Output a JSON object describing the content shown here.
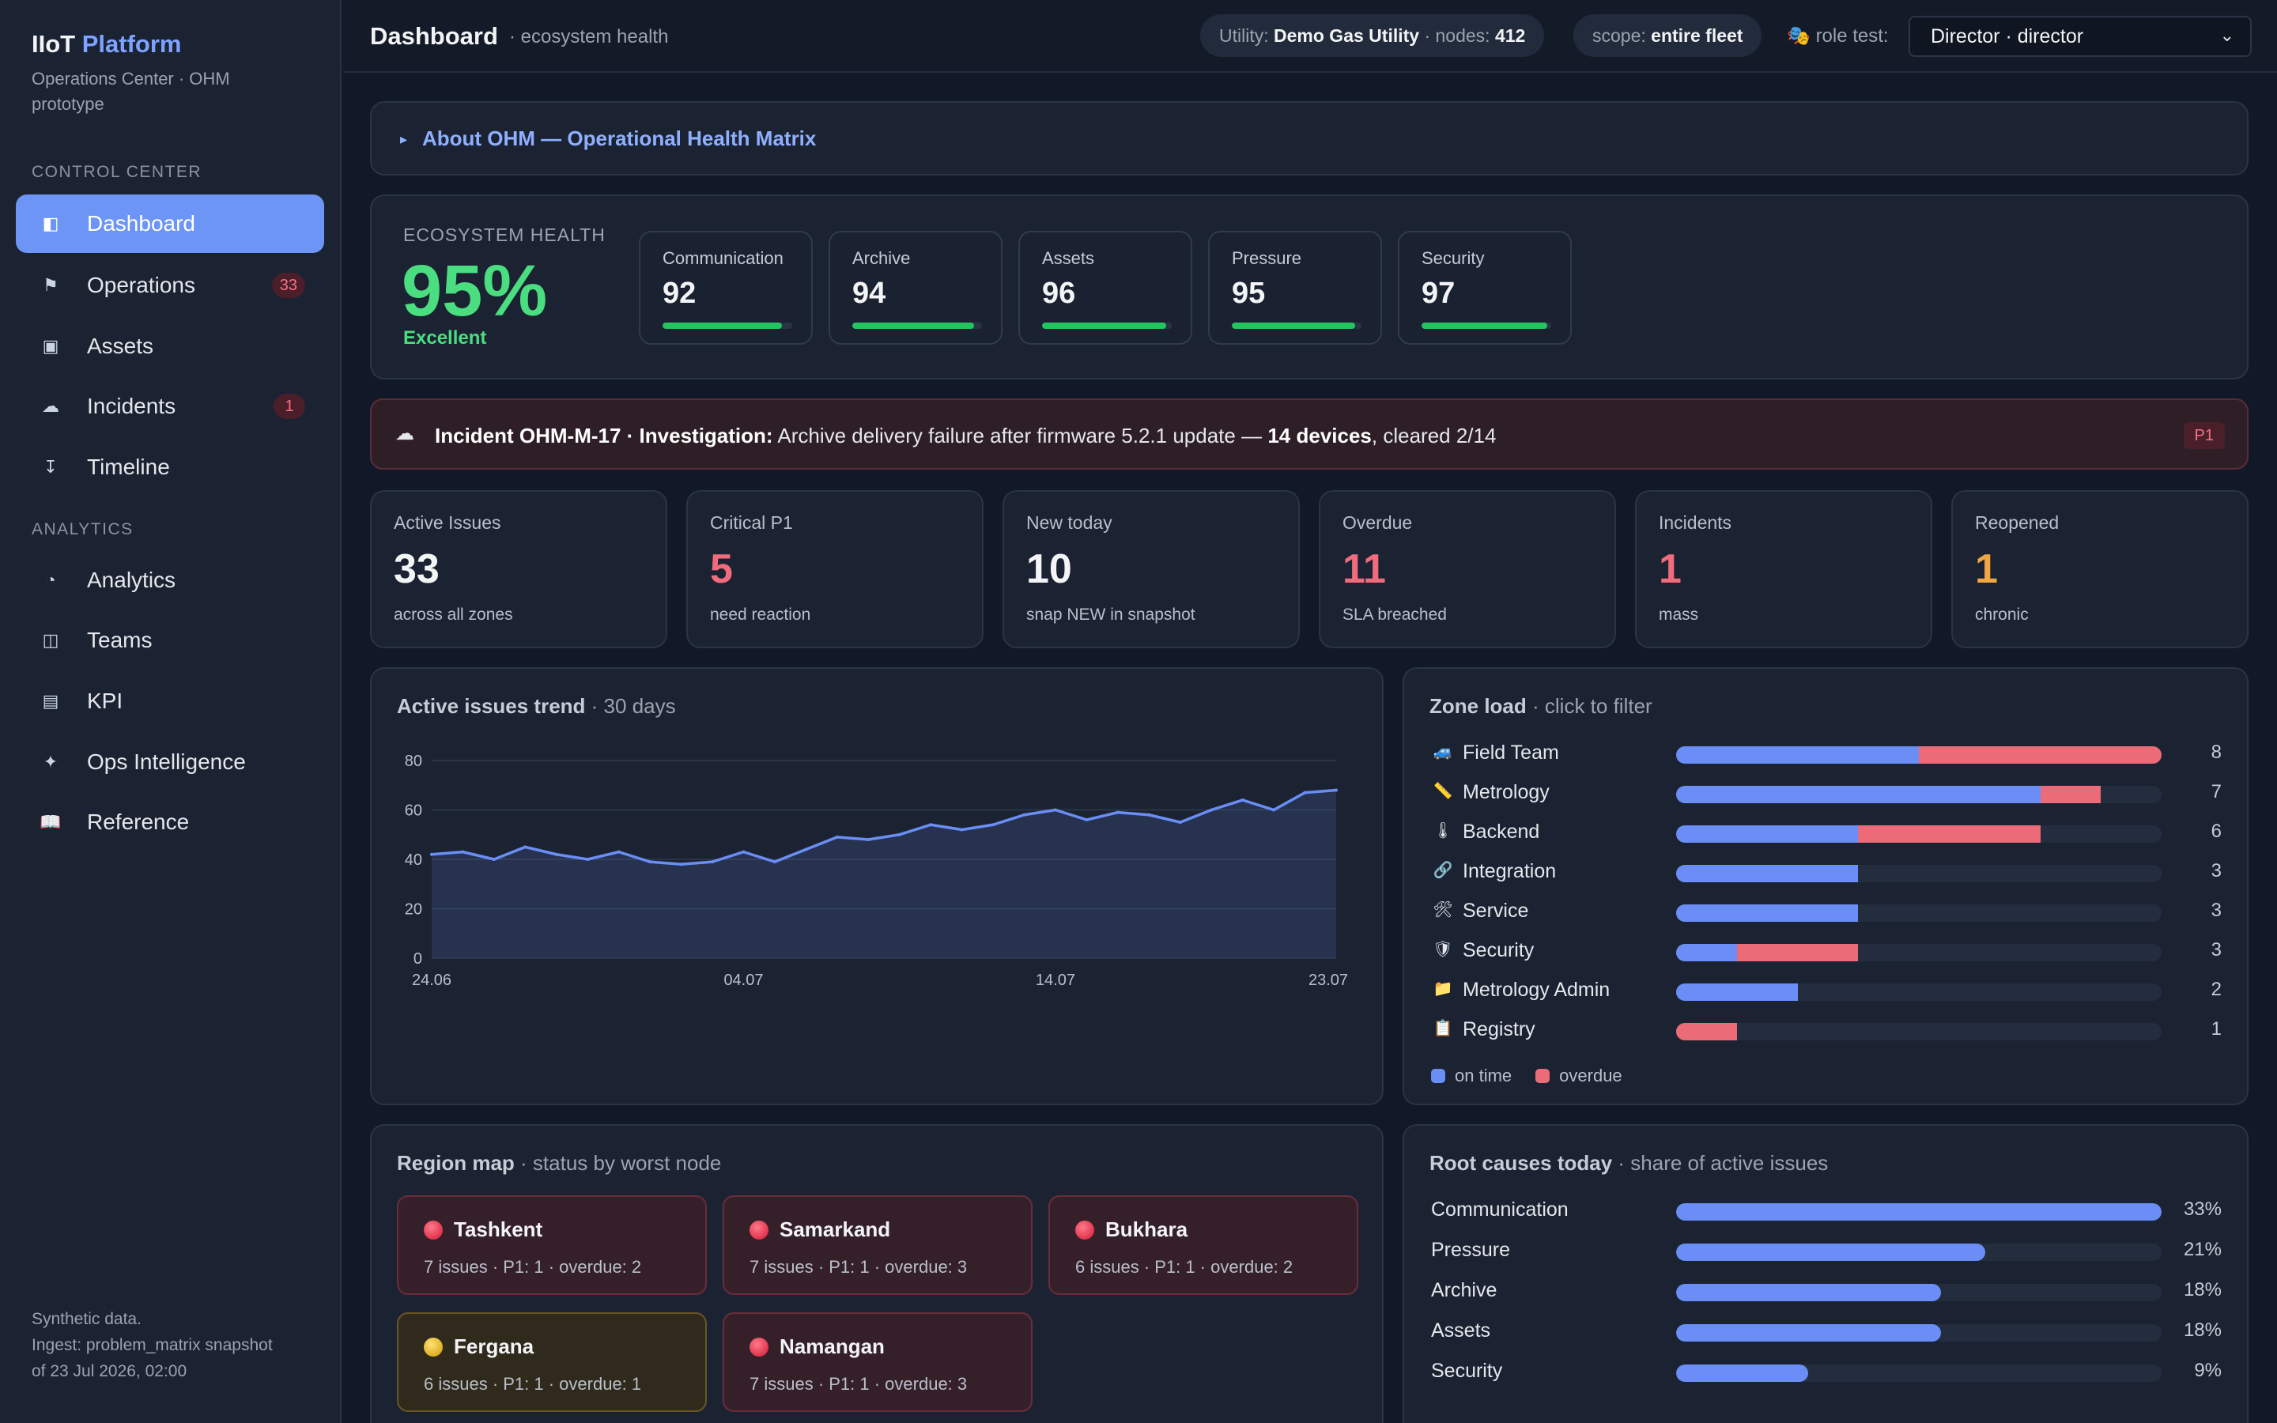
{
  "sidebar": {
    "brand_main": "IIoT",
    "brand_accent": "Platform",
    "subtitle": "Operations Center · OHM prototype",
    "section_control": "CONTROL CENTER",
    "section_analytics": "ANALYTICS",
    "items": [
      {
        "label": "Dashboard",
        "icon": "◧"
      },
      {
        "label": "Operations",
        "icon": "⚑",
        "badge": "33"
      },
      {
        "label": "Assets",
        "icon": "▣"
      },
      {
        "label": "Incidents",
        "icon": "☁",
        "badge": "1"
      },
      {
        "label": "Timeline",
        "icon": "↧"
      },
      {
        "label": "Analytics",
        "icon": "◔"
      },
      {
        "label": "Teams",
        "icon": "◫"
      },
      {
        "label": "KPI",
        "icon": "▤"
      },
      {
        "label": "Ops Intelligence",
        "icon": "✦"
      },
      {
        "label": "Reference",
        "icon": "📖"
      }
    ],
    "footer_line1": "Synthetic data.",
    "footer_line2": "Ingest: problem_matrix snapshot",
    "footer_line3": "of 23 Jul 2026, 02:00"
  },
  "topbar": {
    "title": "Dashboard",
    "subtitle": "· ecosystem health",
    "utility_prefix": "Utility:",
    "utility_name": "Demo Gas Utility",
    "nodes_prefix": "· nodes:",
    "nodes_count": "412",
    "scope_prefix": "scope:",
    "scope_value": "entire fleet",
    "role_icon": "🎭",
    "role_label": "role test:",
    "role_value": "Director · director"
  },
  "about": {
    "label": "About OHM — Operational Health Matrix"
  },
  "health": {
    "label": "ECOSYSTEM HEALTH",
    "value": "95%",
    "grade": "Excellent",
    "metrics": [
      {
        "name": "Communication",
        "value": "92",
        "level": 0.92
      },
      {
        "name": "Archive",
        "value": "94",
        "level": 0.94
      },
      {
        "name": "Assets",
        "value": "96",
        "level": 0.96
      },
      {
        "name": "Pressure",
        "value": "95",
        "level": 0.95
      },
      {
        "name": "Security",
        "value": "97",
        "level": 0.97
      }
    ]
  },
  "incident": {
    "icon": "☁",
    "id_status": "Incident OHM-M-17 · Investigation:",
    "description": "Archive delivery failure after firmware 5.2.1 update —",
    "devices": "14 devices",
    "cleared": ", cleared 2/14",
    "priority": "P1"
  },
  "kpis": [
    {
      "label": "Active Issues",
      "value": "33",
      "sub": "across all zones",
      "color": "#f3f4f6"
    },
    {
      "label": "Critical P1",
      "value": "5",
      "sub": "need reaction",
      "color": "#f06b7c"
    },
    {
      "label": "New today",
      "value": "10",
      "sub": "snap NEW in snapshot",
      "color": "#f3f4f6"
    },
    {
      "label": "Overdue",
      "value": "11",
      "sub": "SLA breached",
      "color": "#f06b7c"
    },
    {
      "label": "Incidents",
      "value": "1",
      "sub": "mass",
      "color": "#f06b7c"
    },
    {
      "label": "Reopened",
      "value": "1",
      "sub": "chronic",
      "color": "#f0a643"
    }
  ],
  "trend": {
    "title": "Active issues trend",
    "subtitle": "· 30 days"
  },
  "chart_data": {
    "type": "area",
    "title": "Active issues trend",
    "x_tick_labels": [
      "24.06",
      "04.07",
      "14.07",
      "23.07"
    ],
    "y_ticks": [
      0,
      20,
      40,
      60,
      80
    ],
    "ylim": [
      0,
      80
    ],
    "grid": true,
    "series": [
      {
        "values": [
          42,
          43,
          40,
          45,
          42,
          40,
          43,
          39,
          38,
          39,
          43,
          39,
          44,
          49,
          48,
          50,
          54,
          52,
          54,
          58,
          60,
          56,
          59,
          58,
          55,
          60,
          64,
          60,
          67,
          68
        ],
        "color": "#6a8ef5"
      }
    ]
  },
  "zone": {
    "title": "Zone load",
    "subtitle": "· click to filter",
    "legend_on_time": "on time",
    "legend_overdue": "overdue",
    "scale_max": 8,
    "rows": [
      {
        "icon": "🚙",
        "label": "Field Team",
        "on_time": 4,
        "overdue": 4,
        "total": "8"
      },
      {
        "icon": "📏",
        "label": "Metrology",
        "on_time": 6,
        "overdue": 1,
        "total": "7"
      },
      {
        "icon": "🌡",
        "label": "Backend",
        "on_time": 3,
        "overdue": 3,
        "total": "6"
      },
      {
        "icon": "🔗",
        "label": "Integration",
        "on_time": 3,
        "overdue": 0,
        "total": "3"
      },
      {
        "icon": "🛠",
        "label": "Service",
        "on_time": 3,
        "overdue": 0,
        "total": "3"
      },
      {
        "icon": "🛡",
        "label": "Security",
        "on_time": 1,
        "overdue": 2,
        "total": "3"
      },
      {
        "icon": "📁",
        "label": "Metrology Admin",
        "on_time": 2,
        "overdue": 0,
        "total": "2"
      },
      {
        "icon": "📋",
        "label": "Registry",
        "on_time": 0,
        "overdue": 1,
        "total": "1"
      }
    ]
  },
  "region": {
    "title": "Region map",
    "subtitle": "· status by worst node",
    "cards": [
      {
        "name": "Tashkent",
        "info": "7 issues · P1: 1 · overdue: 2",
        "status": "red"
      },
      {
        "name": "Samarkand",
        "info": "7 issues · P1: 1 · overdue: 3",
        "status": "red"
      },
      {
        "name": "Bukhara",
        "info": "6 issues · P1: 1 · overdue: 2",
        "status": "red"
      },
      {
        "name": "Fergana",
        "info": "6 issues · P1: 1 · overdue: 1",
        "status": "yellow"
      },
      {
        "name": "Namangan",
        "info": "7 issues · P1: 1 · overdue: 3",
        "status": "red"
      }
    ]
  },
  "roots": {
    "title": "Root causes today",
    "subtitle": "· share of active issues",
    "rows": [
      {
        "label": "Communication",
        "share": 33,
        "value": "33%"
      },
      {
        "label": "Pressure",
        "share": 21,
        "value": "21%"
      },
      {
        "label": "Archive",
        "share": 18,
        "value": "18%"
      },
      {
        "label": "Assets",
        "share": 18,
        "value": "18%"
      },
      {
        "label": "Security",
        "share": 9,
        "value": "9%"
      }
    ]
  }
}
